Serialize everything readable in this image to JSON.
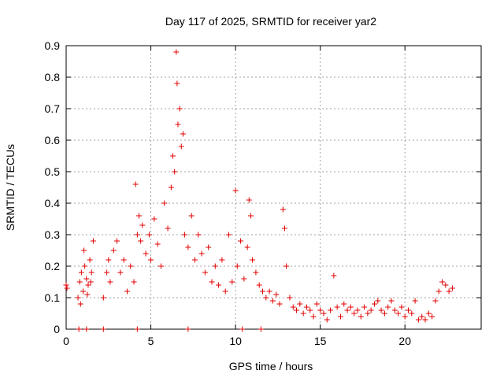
{
  "chart_data": {
    "type": "scatter",
    "title": "Day 117 of 2025, SRMTID for receiver yar2",
    "xlabel": "GPS time / hours",
    "ylabel": "SRMTID / TECUs",
    "xlim": [
      0,
      24.5
    ],
    "ylim": [
      0,
      0.9
    ],
    "x_ticks": [
      0,
      5,
      10,
      15,
      20
    ],
    "x_tick_labels": [
      "0",
      "5",
      "10",
      "15",
      "20"
    ],
    "y_ticks": [
      0,
      0.1,
      0.2,
      0.3,
      0.4,
      0.5,
      0.6,
      0.7,
      0.8,
      0.9
    ],
    "y_tick_labels": [
      "0",
      "0.1",
      "0.2",
      "0.3",
      "0.4",
      "0.5",
      "0.6",
      "0.7",
      "0.8",
      "0.9"
    ],
    "grid": true,
    "marker": "+",
    "series": [
      {
        "name": "SRMTID",
        "color": "#e00000",
        "x": [
          0.0,
          0.05,
          0.7,
          0.8,
          0.9,
          1.0,
          1.1,
          1.2,
          1.3,
          1.4,
          1.5,
          1.6,
          0.85,
          1.05,
          1.25,
          1.45,
          2.2,
          2.4,
          2.5,
          2.6,
          2.8,
          3.0,
          3.2,
          3.4,
          3.6,
          3.8,
          4.0,
          4.1,
          4.2,
          4.3,
          4.4,
          4.5,
          4.7,
          4.9,
          5.0,
          5.2,
          5.4,
          5.6,
          5.8,
          6.0,
          6.2,
          6.3,
          6.4,
          6.5,
          6.55,
          6.6,
          6.7,
          6.8,
          6.9,
          7.0,
          7.2,
          7.4,
          7.6,
          7.8,
          8.0,
          8.2,
          8.4,
          8.6,
          8.8,
          9.0,
          9.2,
          9.4,
          9.6,
          9.8,
          10.0,
          10.1,
          10.3,
          10.5,
          10.7,
          10.8,
          10.9,
          11.0,
          11.2,
          11.4,
          11.6,
          11.8,
          12.0,
          12.2,
          12.4,
          12.6,
          12.8,
          12.9,
          13.0,
          13.2,
          13.4,
          13.6,
          13.8,
          14.0,
          14.2,
          14.4,
          14.6,
          14.8,
          15.0,
          15.2,
          15.4,
          15.6,
          15.8,
          16.0,
          16.2,
          16.4,
          16.6,
          16.8,
          17.0,
          17.2,
          17.4,
          17.6,
          17.8,
          18.0,
          18.2,
          18.4,
          18.6,
          18.8,
          19.0,
          19.2,
          19.4,
          19.6,
          19.8,
          20.0,
          20.2,
          20.4,
          20.6,
          20.8,
          21.0,
          21.2,
          21.4,
          21.6,
          21.8,
          22.0,
          22.2,
          22.4,
          22.6,
          22.8,
          0.75,
          1.2,
          2.2,
          4.2,
          7.2,
          10.4,
          11.5
        ],
        "y": [
          0.14,
          0.13,
          0.1,
          0.15,
          0.18,
          0.12,
          0.2,
          0.16,
          0.14,
          0.22,
          0.18,
          0.28,
          0.08,
          0.25,
          0.11,
          0.15,
          0.1,
          0.18,
          0.22,
          0.15,
          0.25,
          0.28,
          0.18,
          0.22,
          0.12,
          0.2,
          0.15,
          0.46,
          0.3,
          0.36,
          0.28,
          0.33,
          0.24,
          0.3,
          0.22,
          0.35,
          0.27,
          0.2,
          0.4,
          0.32,
          0.45,
          0.55,
          0.5,
          0.88,
          0.78,
          0.65,
          0.7,
          0.58,
          0.62,
          0.3,
          0.26,
          0.36,
          0.22,
          0.3,
          0.24,
          0.18,
          0.26,
          0.15,
          0.2,
          0.14,
          0.22,
          0.12,
          0.3,
          0.15,
          0.44,
          0.2,
          0.28,
          0.16,
          0.26,
          0.41,
          0.36,
          0.22,
          0.18,
          0.14,
          0.12,
          0.1,
          0.12,
          0.09,
          0.11,
          0.08,
          0.38,
          0.32,
          0.2,
          0.1,
          0.07,
          0.06,
          0.08,
          0.05,
          0.07,
          0.06,
          0.04,
          0.08,
          0.06,
          0.05,
          0.03,
          0.06,
          0.17,
          0.07,
          0.04,
          0.08,
          0.06,
          0.07,
          0.05,
          0.06,
          0.04,
          0.07,
          0.05,
          0.06,
          0.08,
          0.09,
          0.06,
          0.05,
          0.07,
          0.09,
          0.06,
          0.05,
          0.07,
          0.04,
          0.06,
          0.05,
          0.09,
          0.03,
          0.04,
          0.03,
          0.05,
          0.04,
          0.09,
          0.12,
          0.15,
          0.14,
          0.12,
          0.13,
          0.0,
          0.0,
          0.0,
          0.0,
          0.0,
          0.0,
          0.0
        ]
      }
    ]
  }
}
